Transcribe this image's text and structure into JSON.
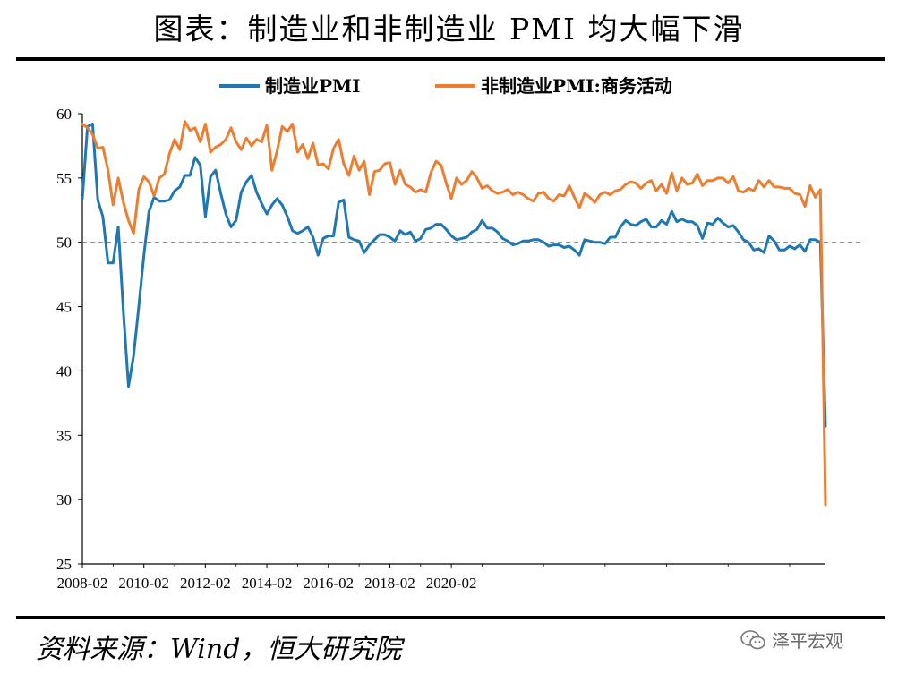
{
  "header": {
    "title": "图表：制造业和非制造业 PMI 均大幅下滑"
  },
  "footer": {
    "source": "资料来源：Wind，恒大研究院",
    "watermark": "泽平宏观",
    "watermark_icon": "wechat-icon"
  },
  "colors": {
    "manufacturing": "#1F77B4",
    "non_manufacturing": "#ED7D31",
    "reference_line": "#7F7F7F",
    "axis": "#000000"
  },
  "chart_data": {
    "type": "line",
    "title": "",
    "xlabel": "",
    "ylabel": "",
    "ylim": [
      25,
      60
    ],
    "yticks": [
      25,
      30,
      35,
      40,
      45,
      50,
      55,
      60
    ],
    "xticks": [
      "2008-02",
      "2010-02",
      "2012-02",
      "2014-02",
      "2016-02",
      "2018-02",
      "2020-02"
    ],
    "x_start": "2008-02",
    "x_end": "2020-02",
    "reference_line": 50,
    "legend_position": "top",
    "grid": false,
    "series": [
      {
        "name": "制造业PMI",
        "color": "#1F77B4",
        "values": [
          53.4,
          59.0,
          59.2,
          53.3,
          52.0,
          48.4,
          48.4,
          51.2,
          44.6,
          38.8,
          41.2,
          45.0,
          49.0,
          52.4,
          53.5,
          53.2,
          53.2,
          53.3,
          54.0,
          54.3,
          55.2,
          55.2,
          56.6,
          56.0,
          52.0,
          55.1,
          55.6,
          53.8,
          52.2,
          51.2,
          51.7,
          53.9,
          54.7,
          55.2,
          53.9,
          53.0,
          52.2,
          52.9,
          53.4,
          52.9,
          52.0,
          50.9,
          50.7,
          50.9,
          51.2,
          50.4,
          49.0,
          50.3,
          50.5,
          50.5,
          53.1,
          53.3,
          50.4,
          50.2,
          50.1,
          49.2,
          49.8,
          50.2,
          50.6,
          50.6,
          50.4,
          50.1,
          50.9,
          50.6,
          50.8,
          50.1,
          50.3,
          51.0,
          51.1,
          51.4,
          51.4,
          51.0,
          50.5,
          50.2,
          50.3,
          50.4,
          50.8,
          51.0,
          51.7,
          51.1,
          51.1,
          50.8,
          50.3,
          50.1,
          49.8,
          49.9,
          50.1,
          50.1,
          50.2,
          50.2,
          50.0,
          49.7,
          49.8,
          49.8,
          49.6,
          49.7,
          49.4,
          49.0,
          50.2,
          50.1,
          50.0,
          50.0,
          49.9,
          50.4,
          50.4,
          51.2,
          51.7,
          51.4,
          51.3,
          51.6,
          51.8,
          51.2,
          51.2,
          51.7,
          51.4,
          52.4,
          51.6,
          51.8,
          51.6,
          51.6,
          51.3,
          50.3,
          51.5,
          51.4,
          51.9,
          51.5,
          51.2,
          51.3,
          50.8,
          50.2,
          50.0,
          49.4,
          49.5,
          49.2,
          50.5,
          50.1,
          49.4,
          49.4,
          49.7,
          49.5,
          49.8,
          49.3,
          50.2,
          50.2,
          50.0,
          35.7
        ]
      },
      {
        "name": "非制造业PMI:商务活动",
        "color": "#ED7D31",
        "values": [
          59.2,
          58.9,
          58.4,
          57.3,
          57.4,
          55.6,
          52.9,
          55.0,
          53.1,
          51.7,
          50.7,
          54.1,
          55.1,
          54.7,
          53.6,
          55.0,
          55.3,
          56.9,
          58.0,
          57.2,
          59.4,
          58.7,
          58.9,
          57.8,
          59.2,
          57.0,
          57.4,
          57.6,
          58.0,
          58.9,
          57.8,
          57.2,
          58.1,
          57.5,
          58.0,
          57.8,
          59.1,
          55.6,
          57.1,
          59.0,
          58.6,
          59.2,
          57.0,
          57.6,
          56.5,
          57.7,
          56.0,
          56.1,
          55.7,
          57.3,
          58.0,
          56.1,
          55.2,
          56.7,
          55.6,
          56.3,
          53.7,
          55.5,
          55.6,
          56.1,
          56.2,
          54.5,
          55.6,
          54.5,
          54.3,
          53.9,
          54.1,
          53.9,
          55.4,
          56.3,
          56.0,
          54.6,
          53.4,
          55.0,
          54.5,
          54.8,
          55.5,
          55.0,
          54.2,
          54.4,
          54.0,
          53.8,
          53.9,
          54.1,
          53.7,
          53.9,
          53.7,
          53.4,
          53.2,
          53.8,
          53.9,
          53.4,
          53.2,
          53.7,
          53.6,
          54.4,
          53.5,
          52.7,
          53.8,
          53.5,
          53.1,
          53.7,
          53.9,
          53.7,
          54.0,
          54.1,
          54.5,
          54.7,
          54.6,
          54.2,
          54.6,
          54.8,
          54.0,
          54.5,
          53.8,
          55.4,
          54.0,
          55.0,
          54.5,
          54.6,
          55.3,
          54.4,
          54.8,
          54.8,
          55.0,
          55.0,
          54.6,
          55.1,
          54.0,
          53.9,
          54.2,
          54.0,
          54.8,
          54.3,
          54.8,
          54.3,
          54.3,
          54.2,
          54.2,
          53.8,
          53.7,
          52.8,
          54.4,
          53.5,
          54.1,
          29.6
        ]
      }
    ]
  }
}
